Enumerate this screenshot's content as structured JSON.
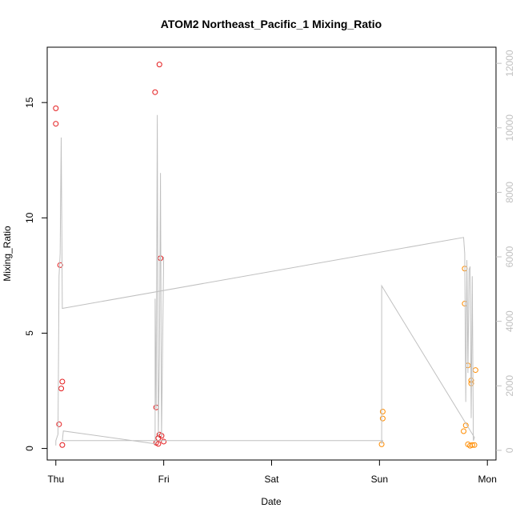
{
  "chart_data": {
    "type": "scatter",
    "title": "ATOM2 Northeast_Pacific_1 Mixing_Ratio",
    "xlabel": "Date",
    "ylabel": "Mixing_Ratio",
    "x_ticks": [
      "Thu",
      "Fri",
      "Sat",
      "Sun",
      "Mon"
    ],
    "xlim": [
      -0.08,
      4.08
    ],
    "ylim": [
      -0.5,
      17.4
    ],
    "y_ticks": [
      0,
      5,
      10,
      15
    ],
    "y2lim": [
      -300,
      12500
    ],
    "y2_ticks": [
      0,
      2000,
      4000,
      6000,
      8000,
      10000,
      12000
    ],
    "grid": false,
    "series": [
      {
        "color": "#e41a1c",
        "marker": "open-circle",
        "points": [
          {
            "x": 0.0,
            "y": 14.75
          },
          {
            "x": 0.0,
            "y": 14.08
          },
          {
            "x": 0.04,
            "y": 7.95
          },
          {
            "x": 0.03,
            "y": 1.05
          },
          {
            "x": 0.06,
            "y": 2.9
          },
          {
            "x": 0.05,
            "y": 2.6
          },
          {
            "x": 0.06,
            "y": 0.15
          },
          {
            "x": 0.92,
            "y": 15.45
          },
          {
            "x": 0.96,
            "y": 16.65
          },
          {
            "x": 0.97,
            "y": 8.25
          },
          {
            "x": 0.93,
            "y": 1.78
          },
          {
            "x": 0.96,
            "y": 0.6
          },
          {
            "x": 0.98,
            "y": 0.55
          },
          {
            "x": 0.95,
            "y": 0.45
          },
          {
            "x": 0.93,
            "y": 0.25
          },
          {
            "x": 0.95,
            "y": 0.2
          },
          {
            "x": 1.0,
            "y": 0.3
          }
        ]
      },
      {
        "color": "#ff8c00",
        "marker": "open-circle",
        "points": [
          {
            "x": 3.03,
            "y": 1.6
          },
          {
            "x": 3.03,
            "y": 1.3
          },
          {
            "x": 3.02,
            "y": 0.18
          },
          {
            "x": 3.79,
            "y": 7.8
          },
          {
            "x": 3.79,
            "y": 6.28
          },
          {
            "x": 3.78,
            "y": 0.75
          },
          {
            "x": 3.8,
            "y": 1.0
          },
          {
            "x": 3.82,
            "y": 3.6
          },
          {
            "x": 3.85,
            "y": 2.95
          },
          {
            "x": 3.85,
            "y": 2.82
          },
          {
            "x": 3.89,
            "y": 3.4
          },
          {
            "x": 3.82,
            "y": 0.18
          },
          {
            "x": 3.84,
            "y": 0.12
          },
          {
            "x": 3.86,
            "y": 0.15
          },
          {
            "x": 3.88,
            "y": 0.15
          }
        ]
      },
      {
        "color": "#c0c0c0",
        "type": "line",
        "axis": "right",
        "points": [
          {
            "x": 0.0,
            "y": 150
          },
          {
            "x": 0.0,
            "y": 300
          },
          {
            "x": 0.02,
            "y": 500
          },
          {
            "x": 0.03,
            "y": 5400
          },
          {
            "x": 0.04,
            "y": 6100
          },
          {
            "x": 0.05,
            "y": 9700
          },
          {
            "x": 0.06,
            "y": 4400
          },
          {
            "x": 3.78,
            "y": 6600
          },
          {
            "x": 3.79,
            "y": 6100
          },
          {
            "x": 3.8,
            "y": 1500
          },
          {
            "x": 3.81,
            "y": 5900
          },
          {
            "x": 3.82,
            "y": 2400
          },
          {
            "x": 3.83,
            "y": 5600
          },
          {
            "x": 3.84,
            "y": 5700
          },
          {
            "x": 3.85,
            "y": 1000
          },
          {
            "x": 3.86,
            "y": 5400
          },
          {
            "x": 3.87,
            "y": 300
          },
          {
            "x": 3.88,
            "y": 400
          },
          {
            "x": 3.02,
            "y": 5100
          },
          {
            "x": 3.02,
            "y": 200
          },
          {
            "x": 3.03,
            "y": 300
          },
          {
            "x": 0.06,
            "y": 300
          },
          {
            "x": 0.07,
            "y": 600
          },
          {
            "x": 0.92,
            "y": 200
          },
          {
            "x": 0.92,
            "y": 4700
          },
          {
            "x": 0.93,
            "y": 1300
          },
          {
            "x": 0.94,
            "y": 10400
          },
          {
            "x": 0.95,
            "y": 400
          },
          {
            "x": 0.96,
            "y": 3000
          },
          {
            "x": 0.97,
            "y": 8600
          },
          {
            "x": 0.98,
            "y": 400
          },
          {
            "x": 1.0,
            "y": 6000
          }
        ]
      }
    ]
  }
}
